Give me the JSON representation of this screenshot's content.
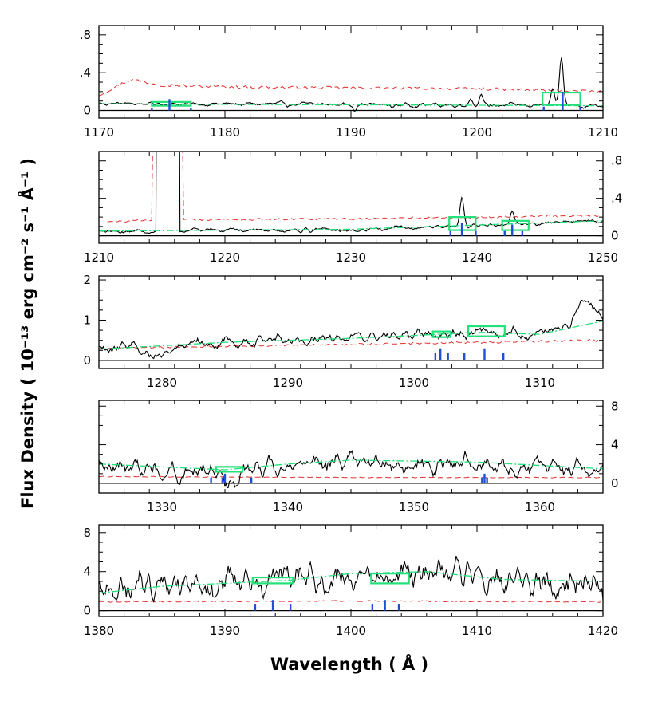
{
  "figure": {
    "xlabel": "Wavelength  ( Å )",
    "ylabel": "Flux Density  ( 10⁻¹³ erg cm⁻² s⁻¹ Å⁻¹ )"
  },
  "colors": {
    "spectrum": "#000000",
    "error": "#e03030",
    "continuum": "#22e07a",
    "feature_box": "#22e07a",
    "line_marker": "#1f4fd8",
    "zero_line": "#000000"
  },
  "chart_data": [
    {
      "type": "line",
      "panel": 1,
      "xlim": [
        1170,
        1210
      ],
      "ylim": [
        -0.08,
        0.9
      ],
      "xticks": [
        1170,
        1180,
        1190,
        1200,
        1210
      ],
      "yticks": [
        0,
        0.4,
        0.8
      ],
      "ytick_labels": [
        "0",
        ".4",
        ".8"
      ],
      "ytick_side": "left",
      "continuum": [
        [
          1170,
          0.07
        ],
        [
          1190,
          0.06
        ],
        [
          1210,
          0.05
        ]
      ],
      "error": [
        [
          1170,
          0.16
        ],
        [
          1172.5,
          0.33
        ],
        [
          1175,
          0.27
        ],
        [
          1180,
          0.25
        ],
        [
          1190,
          0.24
        ],
        [
          1200,
          0.23
        ],
        [
          1210,
          0.2
        ]
      ],
      "spectrum_baseline": 0.07,
      "spectrum_noise": 0.02,
      "spectrum_features": [
        [
          1190.3,
          -0.05,
          0.15
        ],
        [
          1193.3,
          -0.04,
          0.15
        ],
        [
          1199.5,
          0.07,
          0.2
        ],
        [
          1200.3,
          0.1,
          0.2
        ],
        [
          1206.0,
          0.15,
          0.2
        ],
        [
          1206.7,
          0.5,
          0.22
        ]
      ],
      "boxes": [
        [
          1174.2,
          1177.3,
          0.05,
          0.09
        ],
        [
          1205.2,
          1208.2,
          0.06,
          0.19
        ]
      ],
      "markers": [
        [
          1174.2,
          0.03
        ],
        [
          1175.6,
          0.12
        ],
        [
          1177.3,
          0.03
        ],
        [
          1205.3,
          0.04
        ],
        [
          1206.8,
          0.2
        ],
        [
          1208.2,
          0.04
        ]
      ]
    },
    {
      "type": "line",
      "panel": 2,
      "xlim": [
        1210,
        1250
      ],
      "ylim": [
        -0.08,
        0.9
      ],
      "xticks": [
        1210,
        1220,
        1230,
        1240,
        1250
      ],
      "yticks": [
        0,
        0.4,
        0.8
      ],
      "ytick_labels": [
        "0",
        ".4",
        ".8"
      ],
      "ytick_side": "right",
      "continuum": [
        [
          1210,
          0.05
        ],
        [
          1230,
          0.07
        ],
        [
          1250,
          0.16
        ]
      ],
      "error": [
        [
          1210,
          0.14
        ],
        [
          1214,
          0.17
        ],
        [
          1230,
          0.18
        ],
        [
          1240,
          0.2
        ],
        [
          1250,
          0.22
        ]
      ],
      "spectrum_baseline": 0.06,
      "spectrum_noise": 0.02,
      "lya_window": [
        1214.6,
        1216.4
      ],
      "spectrum_features": [
        [
          1238.8,
          0.32,
          0.22
        ],
        [
          1242.8,
          0.12,
          0.2
        ]
      ],
      "boxes": [
        [
          1237.8,
          1239.9,
          0.06,
          0.2
        ],
        [
          1242.0,
          1244.1,
          0.06,
          0.16
        ]
      ],
      "markers": [
        [
          1237.9,
          0.05
        ],
        [
          1238.8,
          0.14
        ],
        [
          1239.9,
          0.05
        ],
        [
          1242.2,
          0.05
        ],
        [
          1242.8,
          0.12
        ],
        [
          1243.6,
          0.05
        ]
      ]
    },
    {
      "type": "line",
      "panel": 3,
      "xlim": [
        1275,
        1315
      ],
      "ylim": [
        -0.2,
        2.1
      ],
      "xticks": [
        1280,
        1290,
        1300,
        1310
      ],
      "yticks": [
        0,
        1,
        2
      ],
      "ytick_labels": [
        "0",
        "1",
        "2"
      ],
      "ytick_side": "left",
      "continuum": [
        [
          1275,
          0.28
        ],
        [
          1285,
          0.45
        ],
        [
          1295,
          0.55
        ],
        [
          1300,
          0.62
        ],
        [
          1305,
          0.7
        ],
        [
          1310,
          0.65
        ],
        [
          1315,
          0.98
        ]
      ],
      "error": [
        [
          1275,
          0.3
        ],
        [
          1285,
          0.35
        ],
        [
          1295,
          0.4
        ],
        [
          1305,
          0.45
        ],
        [
          1315,
          0.5
        ]
      ],
      "spectrum_baseline": 0.58,
      "spectrum_noise": 0.12,
      "spectrum_features": [
        [
          1279.5,
          -0.3,
          0.8
        ],
        [
          1313.5,
          0.6,
          1.0
        ]
      ],
      "boxes": [
        [
          1301.5,
          1302.9,
          0.58,
          0.72
        ],
        [
          1304.3,
          1307.2,
          0.6,
          0.85
        ]
      ],
      "markers": [
        [
          1301.7,
          0.18
        ],
        [
          1302.1,
          0.3
        ],
        [
          1302.7,
          0.18
        ],
        [
          1304.0,
          0.18
        ],
        [
          1305.6,
          0.3
        ],
        [
          1307.1,
          0.18
        ]
      ]
    },
    {
      "type": "line",
      "panel": 4,
      "xlim": [
        1325,
        1365
      ],
      "ylim": [
        -1.0,
        8.6
      ],
      "xticks": [
        1330,
        1340,
        1350,
        1360
      ],
      "yticks": [
        0,
        4,
        8
      ],
      "ytick_labels": [
        "0",
        "4",
        "8"
      ],
      "ytick_side": "right",
      "continuum": [
        [
          1325,
          2.0
        ],
        [
          1335,
          1.4
        ],
        [
          1340,
          2.0
        ],
        [
          1345,
          2.4
        ],
        [
          1355,
          2.2
        ],
        [
          1365,
          1.5
        ]
      ],
      "error": [
        [
          1325,
          0.7
        ],
        [
          1345,
          0.6
        ],
        [
          1365,
          0.6
        ]
      ],
      "spectrum_baseline": 2.0,
      "spectrum_noise": 0.9,
      "spectrum_features": [
        [
          1335.3,
          -1.4,
          0.8
        ]
      ],
      "boxes": [
        [
          1334.3,
          1336.4,
          1.2,
          1.7
        ]
      ],
      "markers": [
        [
          1333.9,
          0.6
        ],
        [
          1334.8,
          0.6
        ],
        [
          1335.0,
          1.0
        ],
        [
          1337.1,
          0.6
        ],
        [
          1355.4,
          0.6
        ],
        [
          1355.6,
          1.0
        ],
        [
          1355.8,
          0.6
        ]
      ]
    },
    {
      "type": "line",
      "panel": 5,
      "xlim": [
        1380,
        1420
      ],
      "ylim": [
        -0.6,
        8.8
      ],
      "xticks": [
        1380,
        1390,
        1400,
        1410,
        1420
      ],
      "yticks": [
        0,
        4,
        8
      ],
      "ytick_labels": [
        "0",
        "4",
        "8"
      ],
      "ytick_side": "left",
      "continuum": [
        [
          1380,
          1.8
        ],
        [
          1385,
          2.5
        ],
        [
          1395,
          3.1
        ],
        [
          1400,
          3.8
        ],
        [
          1406,
          4.0
        ],
        [
          1412,
          3.2
        ],
        [
          1420,
          3.0
        ]
      ],
      "error": [
        [
          1380,
          0.9
        ],
        [
          1400,
          1.0
        ],
        [
          1420,
          0.9
        ]
      ],
      "spectrum_baseline": 3.4,
      "spectrum_noise": 1.4,
      "spectrum_features": [],
      "boxes": [
        [
          1392.2,
          1395.4,
          2.8,
          3.4
        ],
        [
          1401.6,
          1404.6,
          2.8,
          3.8
        ]
      ],
      "markers": [
        [
          1392.4,
          0.7
        ],
        [
          1393.8,
          1.1
        ],
        [
          1395.2,
          0.7
        ],
        [
          1401.7,
          0.7
        ],
        [
          1402.7,
          1.1
        ],
        [
          1403.8,
          0.7
        ]
      ]
    }
  ]
}
